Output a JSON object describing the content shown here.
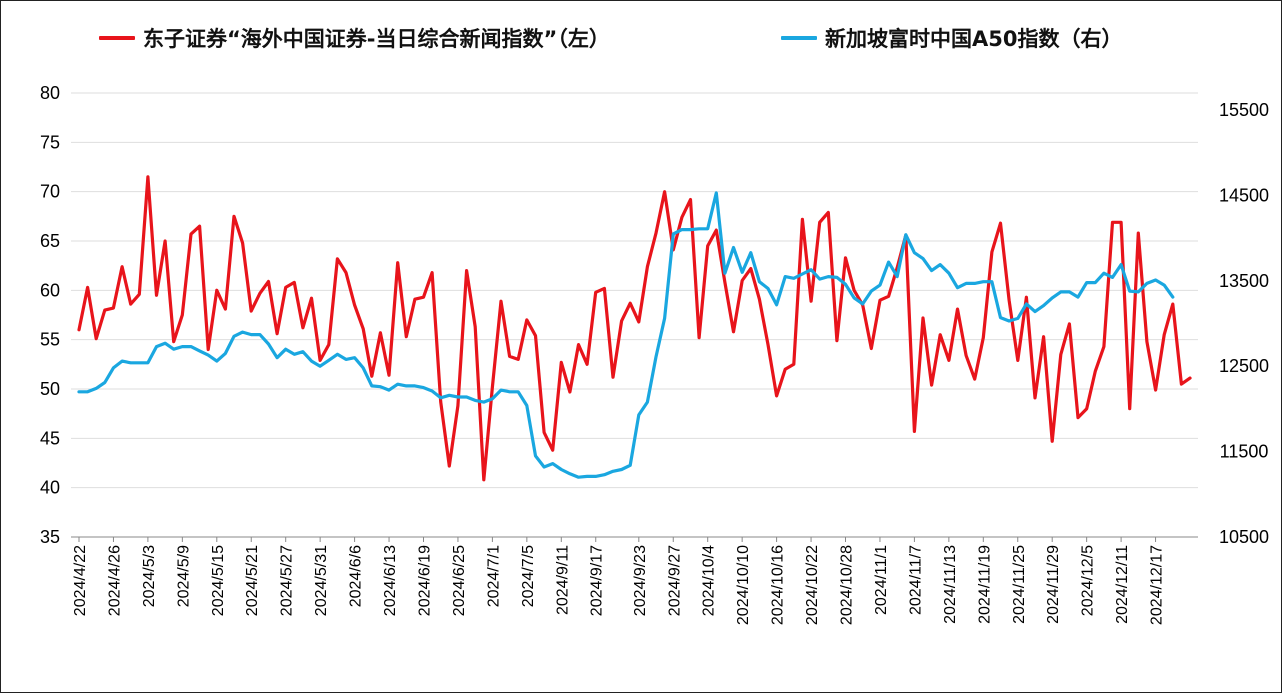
{
  "chart_data": {
    "type": "line",
    "legend_position": "top",
    "grid": "horizontal",
    "left_axis": {
      "ylim": [
        35,
        80
      ],
      "ticks": [
        35,
        40,
        45,
        50,
        55,
        60,
        65,
        70,
        75,
        80
      ]
    },
    "right_axis": {
      "ylim": [
        10500,
        15700
      ],
      "ticks": [
        10500,
        11500,
        12500,
        13500,
        14500,
        15500
      ]
    },
    "x_tick_labels": [
      "2024/4/22",
      "2024/4/26",
      "2024/5/3",
      "2024/5/9",
      "2024/5/15",
      "2024/5/21",
      "2024/5/27",
      "2024/5/31",
      "2024/6/6",
      "2024/6/13",
      "2024/6/19",
      "2024/6/25",
      "2024/7/1",
      "2024/7/5",
      "2024/9/11",
      "2024/9/17",
      "2024/9/23",
      "2024/9/27",
      "2024/10/4",
      "2024/10/10",
      "2024/10/16",
      "2024/10/22",
      "2024/10/28",
      "2024/11/1",
      "2024/11/7",
      "2024/11/13",
      "2024/11/19",
      "2024/11/25",
      "2024/11/29",
      "2024/12/5",
      "2024/12/11",
      "2024/12/17"
    ],
    "series": [
      {
        "name": "东子证券“海外中国证券-当日综合新闻指数”（左）",
        "axis": "left",
        "color": "#e8141b",
        "values": [
          56,
          60.3,
          55.1,
          58,
          58.2,
          62.4,
          58.6,
          59.6,
          71.5,
          59.5,
          65,
          54.8,
          57.5,
          65.7,
          66.5,
          54,
          60,
          58.1,
          67.5,
          64.8,
          57.9,
          59.7,
          60.9,
          55.6,
          60.3,
          60.8,
          56.2,
          59.2,
          52.9,
          54.5,
          63.2,
          61.8,
          58.5,
          56.1,
          51.3,
          55.7,
          51.4,
          62.8,
          55.3,
          59.1,
          59.3,
          61.8,
          48.7,
          42.2,
          48.3,
          62,
          56.3,
          40.8,
          50.2,
          58.9,
          53.3,
          53,
          57,
          55.4,
          45.6,
          43.8,
          52.7,
          49.7,
          54.5,
          52.5,
          59.8,
          60.2,
          51.2,
          56.9,
          58.7,
          56.8,
          62.4,
          65.8,
          70,
          64.1,
          67.4,
          69.2,
          55.2,
          64.5,
          66.1,
          60.8,
          55.8,
          61,
          62.2,
          59.1,
          54.5,
          49.3,
          52,
          52.5,
          67.2,
          58.9,
          66.9,
          67.9,
          54.9,
          63.3,
          60,
          58.5,
          54.1,
          59,
          59.4,
          62.3,
          65.6,
          45.7,
          57.2,
          50.4,
          55.5,
          52.9,
          58.1,
          53.4,
          51,
          55.2,
          63.9,
          66.8,
          59,
          52.9,
          59.3,
          49.1,
          55.3,
          44.7,
          53.5,
          56.6,
          47.1,
          48,
          51.8,
          54.3,
          66.9,
          66.9,
          48,
          65.8,
          54.8,
          49.9,
          55.5,
          58.6,
          50.5,
          51.1
        ]
      },
      {
        "name": "新加坡富时中国A50指数（右）",
        "axis": "right",
        "color": "#1aa7e0",
        "values": [
          12200,
          12200,
          12240,
          12310,
          12480,
          12560,
          12540,
          12540,
          12540,
          12730,
          12770,
          12700,
          12730,
          12730,
          12680,
          12630,
          12560,
          12650,
          12850,
          12900,
          12870,
          12870,
          12760,
          12600,
          12700,
          12640,
          12670,
          12560,
          12500,
          12570,
          12640,
          12580,
          12600,
          12480,
          12270,
          12260,
          12220,
          12290,
          12270,
          12270,
          12250,
          12210,
          12130,
          12160,
          12140,
          12140,
          12100,
          12080,
          12120,
          12220,
          12200,
          12200,
          12040,
          11450,
          11320,
          11360,
          11290,
          11240,
          11200,
          11210,
          11210,
          11230,
          11270,
          11290,
          11340,
          11930,
          12080,
          12610,
          13060,
          14050,
          14100,
          14100,
          14110,
          14110,
          14530,
          13590,
          13890,
          13600,
          13830,
          13490,
          13410,
          13220,
          13550,
          13530,
          13580,
          13630,
          13520,
          13550,
          13540,
          13460,
          13300,
          13230,
          13380,
          13450,
          13720,
          13550,
          14040,
          13830,
          13760,
          13620,
          13690,
          13590,
          13420,
          13470,
          13470,
          13490,
          13490,
          13070,
          13030,
          13060,
          13230,
          13140,
          13210,
          13300,
          13370,
          13370,
          13310,
          13480,
          13480,
          13590,
          13540,
          13690,
          13380,
          13370,
          13470,
          13510,
          13450,
          13310
        ]
      }
    ]
  }
}
